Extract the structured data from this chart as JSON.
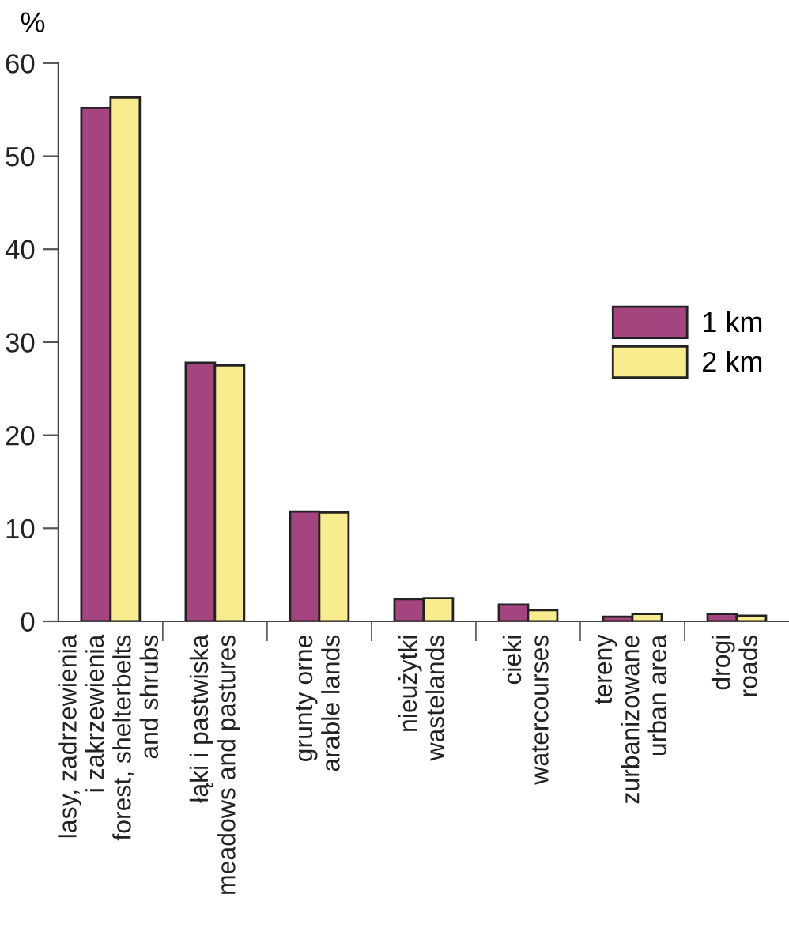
{
  "chart_data": {
    "type": "bar",
    "ylabel": "%",
    "categories": [
      "lasy, zadrzewienia\ni zakrzewienia\nforest, shelterbelts\nand shrubs",
      "łąki i pastwiska\nmeadows and pastures",
      "grunty orne\narable lands",
      "nieużytki\nwastelands",
      "cieki\nwatercourses",
      "tereny\nzurbanizowane\nurban area",
      "drogi\nroads"
    ],
    "series": [
      {
        "name": "1 km",
        "color": "#a5457f",
        "values": [
          55.2,
          27.8,
          11.8,
          2.4,
          1.8,
          0.5,
          0.8
        ]
      },
      {
        "name": "2 km",
        "color": "#f9ec8f",
        "values": [
          56.3,
          27.5,
          11.7,
          2.5,
          1.2,
          0.8,
          0.6
        ]
      }
    ],
    "ylim": [
      0,
      60
    ],
    "yticks": [
      0,
      10,
      20,
      30,
      40,
      50,
      60
    ],
    "grid": false,
    "legend": "right"
  }
}
